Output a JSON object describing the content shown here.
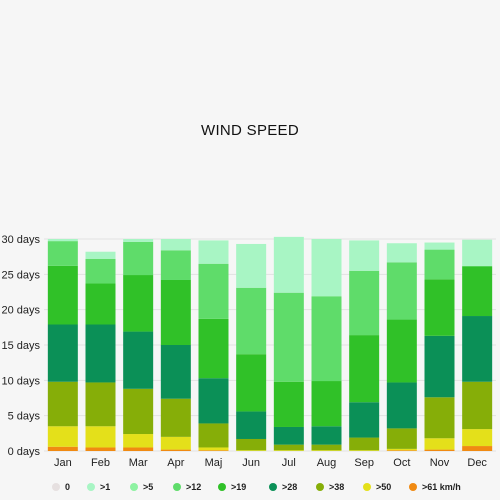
{
  "chart_data": {
    "type": "bar",
    "stacked": true,
    "title": "WIND SPEED",
    "categories": [
      "Jan",
      "Feb",
      "Mar",
      "Apr",
      "Maj",
      "Jun",
      "Jul",
      "Aug",
      "Sep",
      "Oct",
      "Nov",
      "Dec"
    ],
    "y_ticks": [
      "0 days",
      "5 days",
      "10 days",
      "15 days",
      "20 days",
      "25 days",
      "30 days"
    ],
    "ylim": [
      0,
      30
    ],
    "grid": true,
    "legend_position": "bottom",
    "series": [
      {
        "name": "0",
        "color": "#e6e0e0",
        "values": [
          0,
          0,
          0,
          0,
          0,
          0,
          0,
          0,
          0,
          0,
          0,
          0
        ]
      },
      {
        "name": ">1",
        "color": "#a8f5c4",
        "values": [
          0.3,
          1.0,
          0.4,
          1.6,
          3.3,
          6.2,
          7.9,
          8.1,
          4.3,
          2.7,
          1.0,
          3.7
        ]
      },
      {
        "name": ">5",
        "color": "#8ef2a2",
        "values": [
          0,
          0,
          0,
          0,
          0,
          0,
          0,
          0,
          0,
          0,
          0,
          0
        ]
      },
      {
        "name": ">12",
        "color": "#5fdc6a",
        "values": [
          3.5,
          3.5,
          4.7,
          4.2,
          7.8,
          9.4,
          12.6,
          12.0,
          9.1,
          8.1,
          4.2,
          0.1
        ]
      },
      {
        "name": ">19",
        "color": "#30c128",
        "values": [
          8.3,
          5.8,
          8.0,
          9.2,
          8.4,
          8.1,
          6.4,
          6.4,
          9.5,
          8.9,
          8.0,
          7.0
        ]
      },
      {
        "name": ">28",
        "color": "#0b9057",
        "values": [
          8.1,
          8.2,
          8.1,
          7.6,
          6.4,
          3.9,
          2.5,
          2.6,
          5.0,
          6.5,
          8.7,
          9.3
        ]
      },
      {
        "name": ">38",
        "color": "#86ae08",
        "values": [
          6.3,
          6.2,
          6.4,
          5.4,
          3.4,
          1.6,
          0.8,
          0.8,
          1.8,
          2.9,
          5.8,
          6.7
        ]
      },
      {
        "name": ">50",
        "color": "#e4e01a",
        "values": [
          2.9,
          3.0,
          1.9,
          1.8,
          0.4,
          0.1,
          0.1,
          0.1,
          0.1,
          0.2,
          1.6,
          2.4
        ]
      },
      {
        "name": ">61 km/h",
        "color": "#f08a12",
        "values": [
          0.6,
          0.5,
          0.5,
          0.2,
          0.1,
          0,
          0,
          0,
          0,
          0.1,
          0.2,
          0.7
        ]
      }
    ]
  }
}
